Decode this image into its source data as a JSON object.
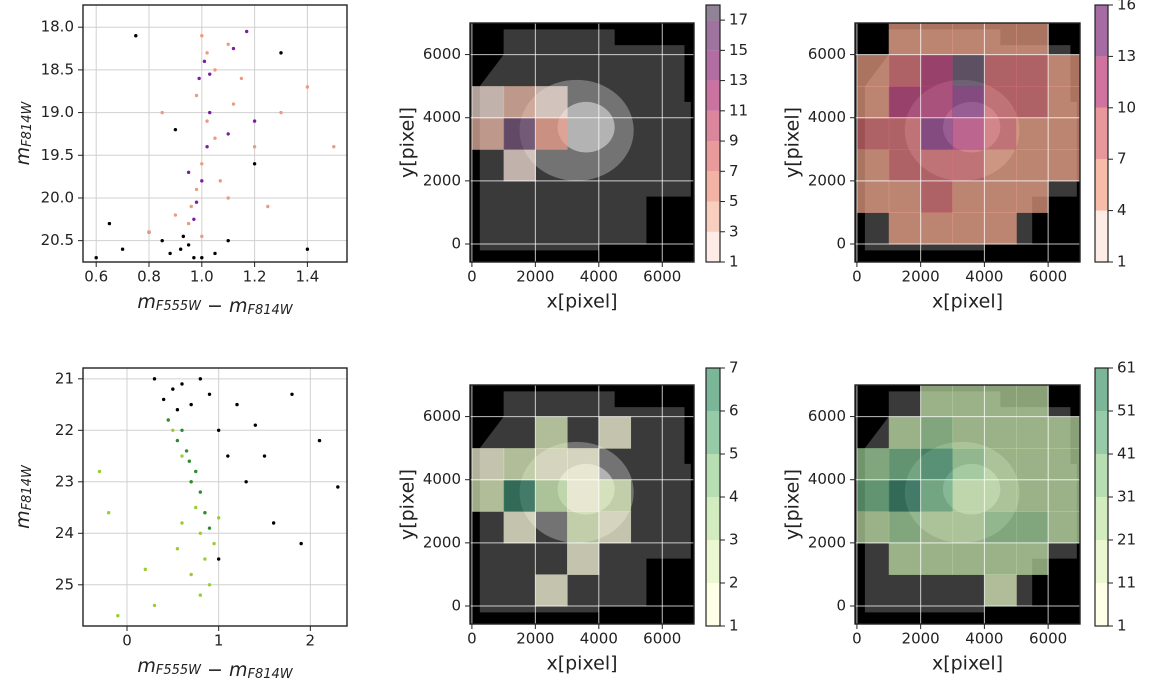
{
  "chart_data": [
    {
      "type": "scatter",
      "xlabel": "mF555W − mF814W",
      "ylabel": "mF814W",
      "xlim": [
        0.55,
        1.55
      ],
      "ylim": [
        20.75,
        17.74
      ],
      "xticks": [
        0.6,
        0.8,
        {
          "value": 1,
          "label": "1.0"
        },
        1.2,
        1.4
      ],
      "yticks": [
        {
          "value": 18,
          "label": "18.0"
        },
        18.5,
        {
          "value": 19,
          "label": "19.0"
        },
        19.5,
        {
          "value": 20,
          "label": "20.0"
        },
        20.5
      ],
      "grid": true,
      "series": [
        {
          "color": "#000000",
          "x": [
            0.75,
            1.3,
            0.9,
            1.2,
            0.65,
            0.85,
            0.92,
            0.97,
            0.95,
            1.05,
            0.7,
            0.8,
            1.0,
            0.93,
            1.4,
            0.6,
            1.1,
            0.88
          ],
          "values": [
            18.1,
            18.3,
            19.2,
            19.6,
            20.3,
            20.5,
            20.6,
            20.7,
            20.55,
            20.65,
            20.6,
            20.4,
            20.7,
            20.45,
            20.6,
            20.7,
            20.5,
            20.65
          ]
        },
        {
          "color": "#ec9a80",
          "x": [
            1.0,
            1.02,
            1.05,
            1.1,
            1.15,
            0.98,
            1.02,
            1.05,
            1.0,
            0.98,
            0.96,
            0.95,
            0.9,
            1.1,
            1.2,
            1.3,
            1.4,
            1.5,
            0.85,
            0.8,
            1.12,
            1.25,
            1.0,
            1.07
          ],
          "values": [
            18.1,
            18.3,
            18.5,
            18.2,
            18.6,
            18.8,
            19.1,
            19.3,
            19.6,
            19.9,
            20.1,
            20.3,
            20.2,
            20.0,
            19.4,
            19.0,
            18.7,
            19.4,
            19.0,
            20.4,
            18.9,
            20.1,
            20.45,
            19.8
          ]
        },
        {
          "color": "#7b1fa2",
          "x": [
            1.01,
            1.03,
            0.99,
            1.12,
            1.03,
            1.02,
            1.0,
            0.98,
            0.97,
            1.17,
            1.2,
            1.1,
            0.95
          ],
          "values": [
            18.4,
            18.55,
            18.6,
            18.25,
            19.0,
            19.4,
            19.8,
            20.05,
            20.25,
            18.05,
            19.1,
            19.25,
            19.7
          ]
        }
      ]
    },
    {
      "type": "contour",
      "xlabel": "x[pixel]",
      "ylabel": "y[pixel]",
      "xlim": [
        -60,
        7000
      ],
      "ylim": [
        -570,
        7000
      ],
      "xticks": [
        0,
        2000,
        4000,
        6000
      ],
      "yticks": [
        0,
        2000,
        4000,
        6000
      ],
      "grid": true,
      "colormap": [
        "#fbe6dc",
        "#f3a58a",
        "#e07478",
        "#c0457f",
        "#8a3a86",
        "#6b5a73"
      ],
      "clim": [
        1,
        18
      ],
      "cticks": [
        1,
        3,
        5,
        7,
        9,
        11,
        13,
        15,
        17
      ],
      "x": [
        500,
        1500,
        2500,
        3500,
        4500,
        5500,
        6500
      ],
      "y": [
        500,
        1500,
        2500,
        3500,
        4500,
        5500,
        6500
      ],
      "z": [
        [
          null,
          null,
          null,
          null,
          null,
          null,
          null
        ],
        [
          null,
          null,
          null,
          null,
          null,
          null,
          null
        ],
        [
          null,
          1,
          null,
          null,
          null,
          null,
          null
        ],
        [
          3,
          17,
          5,
          null,
          null,
          null,
          null
        ],
        [
          1,
          3,
          1,
          null,
          null,
          null,
          null
        ],
        [
          null,
          null,
          null,
          null,
          null,
          null,
          null
        ],
        [
          null,
          null,
          null,
          null,
          null,
          null,
          null
        ]
      ]
    },
    {
      "type": "contour",
      "xlabel": "x[pixel]",
      "ylabel": "y[pixel]",
      "xlim": [
        -60,
        7000
      ],
      "ylim": [
        -570,
        7000
      ],
      "xticks": [
        0,
        2000,
        4000,
        6000
      ],
      "yticks": [
        0,
        2000,
        4000,
        6000
      ],
      "grid": true,
      "colormap": [
        "#fbe6dc",
        "#f3a58a",
        "#e07478",
        "#c0457f",
        "#8a3a86",
        "#6b5a73"
      ],
      "clim": [
        1,
        16
      ],
      "cticks": [
        1,
        4,
        7,
        10,
        13,
        16
      ],
      "x": [
        500,
        1500,
        2500,
        3500,
        4500,
        5500,
        6500
      ],
      "y": [
        500,
        1500,
        2500,
        3500,
        4500,
        5500,
        6500
      ],
      "z": [
        [
          null,
          4,
          4,
          4,
          4,
          null,
          null
        ],
        [
          4,
          4,
          7,
          4,
          4,
          4,
          null
        ],
        [
          4,
          7,
          7,
          7,
          4,
          4,
          4
        ],
        [
          7,
          7,
          13,
          10,
          7,
          4,
          4
        ],
        [
          4,
          10,
          10,
          13,
          7,
          7,
          4
        ],
        [
          4,
          7,
          10,
          16,
          7,
          7,
          4
        ],
        [
          null,
          4,
          4,
          4,
          4,
          4,
          null
        ]
      ]
    },
    {
      "type": "scatter",
      "xlabel": "mF555W − mF814W",
      "ylabel": "mF814W",
      "xlim": [
        -0.48,
        2.4
      ],
      "ylim": [
        25.8,
        20.79
      ],
      "xticks": [
        0,
        1,
        2
      ],
      "yticks": [
        21,
        22,
        23,
        24,
        25
      ],
      "grid": true,
      "series": [
        {
          "color": "#000000",
          "x": [
            0.3,
            0.5,
            0.7,
            0.8,
            1.2,
            1.5,
            1.8,
            2.1,
            1.0,
            1.3,
            1.6,
            1.9,
            0.4,
            0.6,
            0.9,
            1.1,
            1.4,
            2.3,
            1.0,
            0.55
          ],
          "values": [
            21.0,
            21.2,
            21.5,
            21.0,
            21.5,
            22.5,
            21.3,
            22.2,
            22.0,
            23.0,
            23.8,
            24.2,
            21.4,
            21.1,
            21.3,
            22.5,
            21.9,
            23.1,
            24.5,
            21.6
          ]
        },
        {
          "color": "#9acd32",
          "x": [
            0.5,
            0.6,
            0.7,
            0.75,
            0.8,
            0.85,
            0.9,
            0.8,
            0.6,
            1.0,
            0.95,
            -0.3,
            -0.2,
            0.2,
            0.3,
            -0.1,
            0.7,
            0.55
          ],
          "values": [
            22.0,
            22.5,
            23.0,
            23.5,
            24.0,
            24.5,
            25.0,
            25.2,
            23.8,
            23.7,
            24.2,
            22.8,
            23.6,
            24.7,
            25.4,
            25.6,
            24.8,
            24.3
          ]
        },
        {
          "color": "#2e8b2e",
          "x": [
            0.45,
            0.6,
            0.65,
            0.75,
            0.8,
            0.7,
            0.85,
            0.55,
            0.9,
            0.68
          ],
          "values": [
            21.8,
            22.0,
            22.4,
            22.8,
            23.2,
            23.0,
            23.6,
            22.2,
            23.9,
            22.6
          ]
        }
      ]
    },
    {
      "type": "contour",
      "xlabel": "x[pixel]",
      "ylabel": "y[pixel]",
      "xlim": [
        -60,
        7000
      ],
      "ylim": [
        -570,
        7000
      ],
      "xticks": [
        0,
        2000,
        4000,
        6000
      ],
      "yticks": [
        0,
        2000,
        4000,
        6000
      ],
      "grid": true,
      "colormap": [
        "#ffffe0",
        "#d6efb0",
        "#9fd39a",
        "#5fae80",
        "#2f7f64"
      ],
      "clim": [
        1,
        7
      ],
      "cticks": [
        1,
        2,
        3,
        4,
        5,
        6,
        7
      ],
      "x": [
        500,
        1500,
        2500,
        3500,
        4500,
        5500,
        6500
      ],
      "y": [
        500,
        1500,
        2500,
        3500,
        4500,
        5500,
        6500
      ],
      "z": [
        [
          null,
          null,
          1,
          null,
          null,
          null,
          null
        ],
        [
          null,
          null,
          null,
          1,
          null,
          null,
          null
        ],
        [
          null,
          1,
          null,
          2,
          1,
          null,
          null
        ],
        [
          2,
          7,
          3,
          1,
          2,
          null,
          null
        ],
        [
          1,
          2,
          1,
          1,
          null,
          null,
          null
        ],
        [
          null,
          null,
          2,
          null,
          1,
          null,
          null
        ],
        [
          null,
          null,
          null,
          null,
          null,
          null,
          null
        ]
      ]
    },
    {
      "type": "contour",
      "xlabel": "x[pixel]",
      "ylabel": "y[pixel]",
      "xlim": [
        -60,
        7000
      ],
      "ylim": [
        -570,
        7000
      ],
      "xticks": [
        0,
        2000,
        4000,
        6000
      ],
      "yticks": [
        0,
        2000,
        4000,
        6000
      ],
      "grid": true,
      "colormap": [
        "#ffffe0",
        "#d6efb0",
        "#9fd39a",
        "#5fae80",
        "#2f7f64"
      ],
      "clim": [
        1,
        61
      ],
      "cticks": [
        1,
        11,
        21,
        31,
        41,
        51,
        61
      ],
      "x": [
        500,
        1500,
        2500,
        3500,
        4500,
        5500,
        6500
      ],
      "y": [
        500,
        1500,
        2500,
        3500,
        4500,
        5500,
        6500
      ],
      "z": [
        [
          null,
          null,
          null,
          null,
          11,
          null,
          null
        ],
        [
          null,
          21,
          21,
          21,
          21,
          21,
          null
        ],
        [
          21,
          31,
          21,
          21,
          31,
          31,
          21
        ],
        [
          41,
          61,
          41,
          21,
          21,
          21,
          21
        ],
        [
          31,
          41,
          51,
          31,
          21,
          21,
          21
        ],
        [
          null,
          21,
          31,
          21,
          21,
          21,
          21
        ],
        [
          null,
          null,
          21,
          21,
          21,
          21,
          null
        ]
      ]
    }
  ]
}
